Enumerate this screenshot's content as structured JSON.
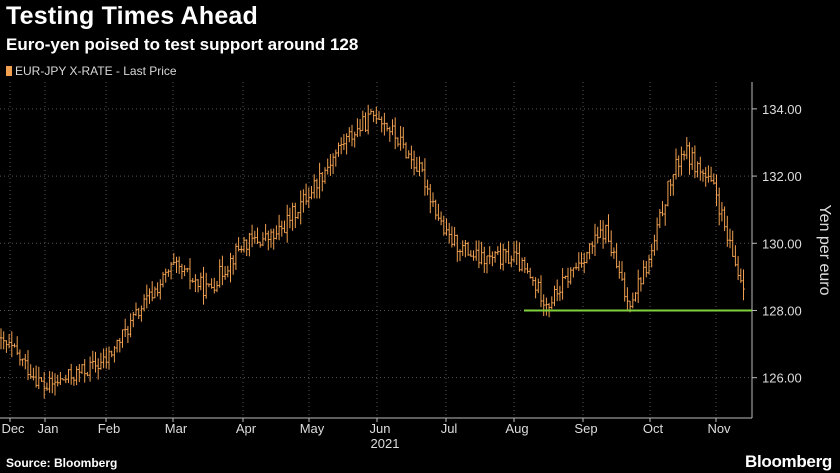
{
  "header": {
    "title": "Testing Times Ahead",
    "subtitle": "Euro-yen poised to test support around 128"
  },
  "legend": {
    "label": "EUR-JPY X-RATE - Last Price",
    "color": "#f0a050"
  },
  "footer": {
    "source": "Source: Bloomberg",
    "brand": "Bloomberg"
  },
  "chart_data": {
    "type": "bar",
    "style": "ohlc-price-bars",
    "series": [
      {
        "name": "EUR-JPY X-RATE - Last Price",
        "color": "#f0a050"
      }
    ],
    "ylabel": "Yen per euro",
    "ylim": [
      124.8,
      134.8
    ],
    "y_ticks": [
      126,
      128,
      130,
      132,
      134
    ],
    "y_tick_labels": [
      "126.00",
      "128.00",
      "130.00",
      "132.00",
      "134.00"
    ],
    "y_axis_position": "right",
    "x_tick_labels": [
      "Dec",
      "Jan",
      "Feb",
      "Mar",
      "Apr",
      "May",
      "Jun",
      "Jul",
      "Aug",
      "Sep",
      "Oct",
      "Nov"
    ],
    "x_year_label": "2021",
    "grid": true,
    "grid_color": "#555555",
    "legend_position": "top-left",
    "support_line": {
      "value": 128,
      "from": "Aug",
      "to": "Nov",
      "color": "#7fd13b"
    },
    "anchors": [
      [
        "Dec",
        126.9
      ],
      [
        "Jan",
        125.7
      ],
      [
        "Feb",
        126.5
      ],
      [
        "Feb",
        128.0
      ],
      [
        "Mar",
        129.3
      ],
      [
        "Mar",
        128.6
      ],
      [
        "Apr",
        130.0
      ],
      [
        "Apr",
        130.2
      ],
      [
        "May",
        131.5
      ],
      [
        "May",
        133.0
      ],
      [
        "Jun",
        133.9
      ],
      [
        "Jun",
        133.0
      ],
      [
        "Jun",
        132.0
      ],
      [
        "Jul",
        130.2
      ],
      [
        "Jul",
        129.5
      ],
      [
        "Aug",
        129.6
      ],
      [
        "Aug",
        128.2
      ],
      [
        "Sep",
        129.6
      ],
      [
        "Sep",
        130.4
      ],
      [
        "Sep",
        128.2
      ],
      [
        "Oct",
        129.5
      ],
      [
        "Oct",
        131.5
      ],
      [
        "Oct",
        132.8
      ],
      [
        "Oct",
        132.2
      ],
      [
        "Nov",
        131.5
      ],
      [
        "Nov",
        130.0
      ],
      [
        "Nov",
        129.0
      ]
    ]
  }
}
